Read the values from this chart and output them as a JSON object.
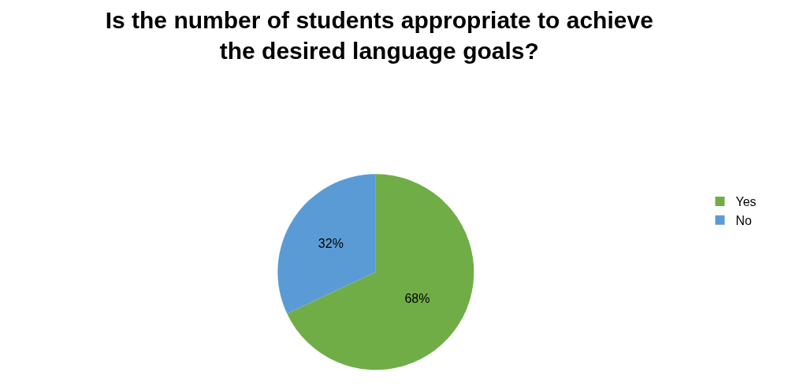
{
  "chart_data": {
    "type": "pie",
    "title": "Is the number of students appropriate to achieve the desired language goals?",
    "categories": [
      "Yes",
      "No"
    ],
    "values": [
      68,
      32
    ],
    "value_labels": [
      "68%",
      "32%"
    ],
    "colors": [
      "#70ad47",
      "#5b9bd5"
    ],
    "legend": "right"
  }
}
